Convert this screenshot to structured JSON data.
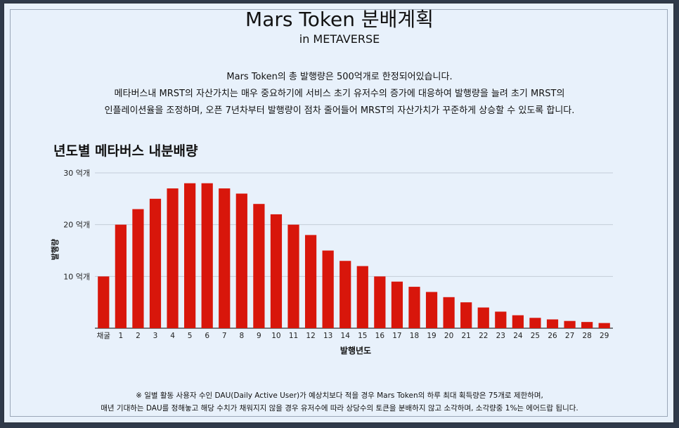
{
  "header": {
    "title": "Mars Token 분배계획",
    "subtitle": "in METAVERSE"
  },
  "description": {
    "line1": "Mars Token의 총 발행량은 500억개로 한정되어있습니다.",
    "line2": "메타버스내 MRST의 자산가치는 매우 중요하기에  서비스 초기 유저수의 증가에 대응하여 발행량을 늘려 초기 MRST의",
    "line3": "인플레이션율을 조정하며, 오픈 7년차부터 발행량이 점차 줄어들어 MRST의 자산가치가 꾸준하게 상승할 수 있도록 합니다."
  },
  "colors": {
    "bar": "#d8160b",
    "grid": "#c4cdd8",
    "background": "#e8f1fb"
  },
  "chart_data": {
    "type": "bar",
    "title": "년도별 메타버스 내분배량",
    "xlabel": "발행년도",
    "ylabel": "발행량",
    "ylim": [
      0,
      30
    ],
    "yticks": [
      {
        "value": 10,
        "label": "10 억개"
      },
      {
        "value": 20,
        "label": "20 억개"
      },
      {
        "value": 30,
        "label": "30 억개"
      }
    ],
    "grid": true,
    "categories": [
      "채굴",
      "1",
      "2",
      "3",
      "4",
      "5",
      "6",
      "7",
      "8",
      "9",
      "10",
      "11",
      "12",
      "13",
      "14",
      "15",
      "16",
      "17",
      "18",
      "19",
      "20",
      "21",
      "22",
      "23",
      "24",
      "25",
      "26",
      "27",
      "28",
      "29"
    ],
    "values": [
      10,
      20,
      23,
      25,
      27,
      28,
      28,
      27,
      26,
      24,
      22,
      20,
      18,
      15,
      13,
      12,
      10,
      9,
      8,
      7,
      6,
      5,
      4,
      3.2,
      2.5,
      2,
      1.7,
      1.4,
      1.2,
      1
    ]
  },
  "footnote": {
    "line1": "※ 일별 활동 사용자 수인 DAU(Daily Active User)가 예상치보다 적을 경우 Mars Token의 하루 최대 획득량은 75개로 제한하며,",
    "line2": "매년 기대하는 DAU를 정해놓고 해당 수치가 채워지지 않을 경우 유저수에 따라 상당수의 토큰을 분배하지 않고 소각하며, 소각량중 1%는 에어드랍 됩니다."
  }
}
